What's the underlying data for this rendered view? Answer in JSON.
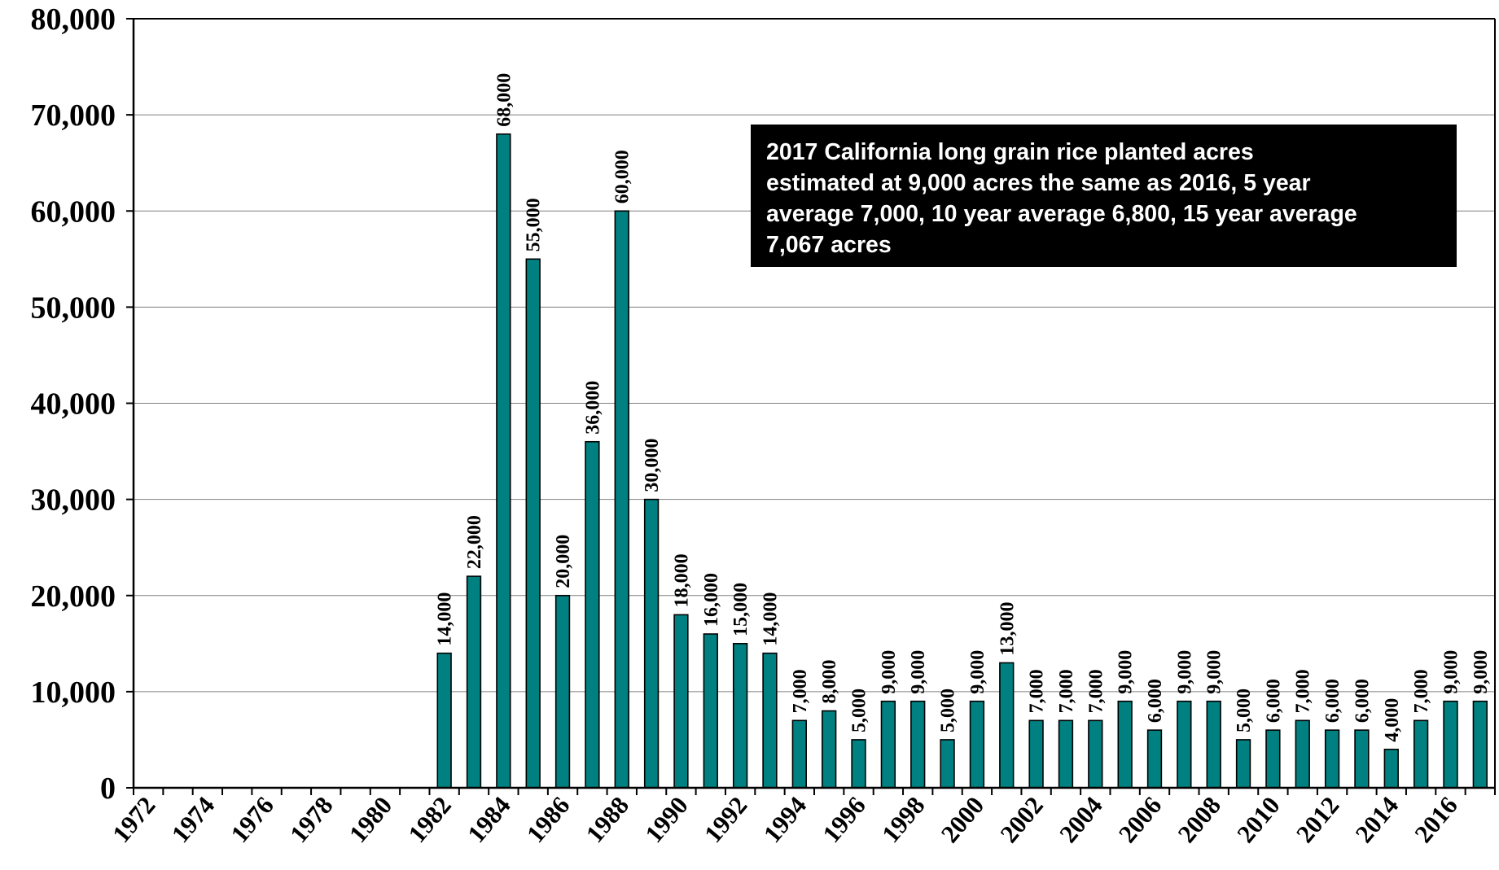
{
  "chart_data": {
    "type": "bar",
    "title": "",
    "xlabel": "",
    "ylabel": "",
    "ylim": [
      0,
      80000
    ],
    "yticks": [
      "0",
      "10,000",
      "20,000",
      "30,000",
      "40,000",
      "50,000",
      "60,000",
      "70,000",
      "80,000"
    ],
    "grid": true,
    "bar_color": "#008080",
    "categories": [
      1972,
      1973,
      1974,
      1975,
      1976,
      1977,
      1978,
      1979,
      1980,
      1981,
      1982,
      1983,
      1984,
      1985,
      1986,
      1987,
      1988,
      1989,
      1990,
      1991,
      1992,
      1993,
      1994,
      1995,
      1996,
      1997,
      1998,
      1999,
      2000,
      2001,
      2002,
      2003,
      2004,
      2005,
      2006,
      2007,
      2008,
      2009,
      2010,
      2011,
      2012,
      2013,
      2014,
      2015,
      2016,
      2017
    ],
    "xtick_labels": [
      "1972",
      "1974",
      "1976",
      "1978",
      "1980",
      "1982",
      "1984",
      "1986",
      "1988",
      "1990",
      "1992",
      "1994",
      "1996",
      "1998",
      "2000",
      "2002",
      "2004",
      "2006",
      "2008",
      "2010",
      "2012",
      "2014",
      "2016"
    ],
    "values": [
      0,
      0,
      0,
      0,
      0,
      0,
      0,
      0,
      0,
      0,
      14000,
      22000,
      68000,
      55000,
      20000,
      36000,
      60000,
      30000,
      18000,
      16000,
      15000,
      14000,
      7000,
      8000,
      5000,
      9000,
      9000,
      5000,
      9000,
      13000,
      7000,
      7000,
      7000,
      9000,
      6000,
      9000,
      9000,
      5000,
      6000,
      7000,
      6000,
      6000,
      4000,
      7000,
      9000,
      9000
    ],
    "data_labels": [
      "",
      "",
      "",
      "",
      "",
      "",
      "",
      "",
      "",
      "",
      "14,000",
      "22,000",
      "68,000",
      "55,000",
      "20,000",
      "36,000",
      "60,000",
      "30,000",
      "18,000",
      "16,000",
      "15,000",
      "14,000",
      "7,000",
      "8,000",
      "5,000",
      "9,000",
      "9,000",
      "5,000",
      "9,000",
      "13,000",
      "7,000",
      "7,000",
      "7,000",
      "9,000",
      "6,000",
      "9,000",
      "9,000",
      "5,000",
      "6,000",
      "7,000",
      "6,000",
      "6,000",
      "4,000",
      "7,000",
      "9,000",
      "9,000"
    ],
    "annotation": {
      "lines": [
        "2017 California long grain rice planted acres",
        "estimated at 9,000 acres the same as 2016, 5 year",
        "average 7,000, 10 year average 6,800, 15 year average",
        "7,067 acres"
      ],
      "background": "#000000",
      "color": "#ffffff"
    }
  }
}
